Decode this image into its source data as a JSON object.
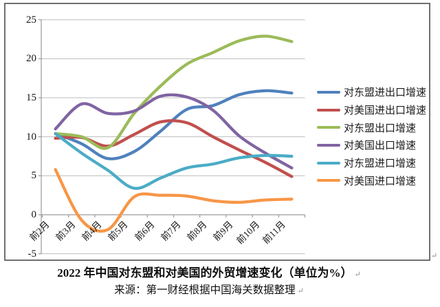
{
  "chart_data": {
    "type": "line",
    "title": "2022 年中国对东盟和对美国的外贸增速变化（单位为%）",
    "source": "来源：第一财经根据中国海关数据整理",
    "categories": [
      "前2月",
      "前3月",
      "前4月",
      "前5月",
      "前6月",
      "前7月",
      "前8月",
      "前9月",
      "前10月",
      "前11月"
    ],
    "series": [
      {
        "name": "对东盟进出口增速",
        "color": "#4F81BD",
        "values": [
          10.4,
          9.1,
          7.2,
          8.1,
          10.7,
          13.5,
          14.0,
          15.4,
          15.9,
          15.6
        ]
      },
      {
        "name": "对美国进出口增速",
        "color": "#C0504D",
        "values": [
          9.8,
          9.9,
          8.8,
          10.3,
          11.9,
          11.8,
          10.0,
          8.3,
          6.7,
          4.9
        ]
      },
      {
        "name": "对东盟出口增速",
        "color": "#9BBB59",
        "values": [
          10.4,
          10.0,
          8.6,
          13.0,
          16.5,
          19.3,
          20.8,
          22.3,
          22.9,
          22.2
        ]
      },
      {
        "name": "对美国出口增速",
        "color": "#8064A2",
        "values": [
          11.0,
          14.2,
          13.0,
          13.3,
          15.2,
          15.1,
          13.4,
          10.1,
          7.9,
          6.0
        ]
      },
      {
        "name": "对东盟进口增速",
        "color": "#4BACC6",
        "values": [
          10.4,
          7.9,
          5.7,
          3.4,
          4.7,
          6.0,
          6.5,
          7.3,
          7.6,
          7.5
        ]
      },
      {
        "name": "对美国进口增速",
        "color": "#F79646",
        "values": [
          5.8,
          -0.7,
          -1.9,
          2.3,
          2.5,
          2.4,
          1.8,
          1.6,
          1.9,
          2.0
        ]
      }
    ],
    "ylim": [
      -5,
      25
    ],
    "yticks": [
      -5,
      0,
      5,
      10,
      15,
      20,
      25
    ],
    "ytick_labels": [
      "-5",
      "0",
      "5",
      "10",
      "15",
      "20",
      "25"
    ],
    "grid": true,
    "legend_position": "right",
    "axis_color": "#9a9a9a",
    "grid_color": "#bdbdbd"
  },
  "marks": {
    "paragraph": "↵"
  }
}
